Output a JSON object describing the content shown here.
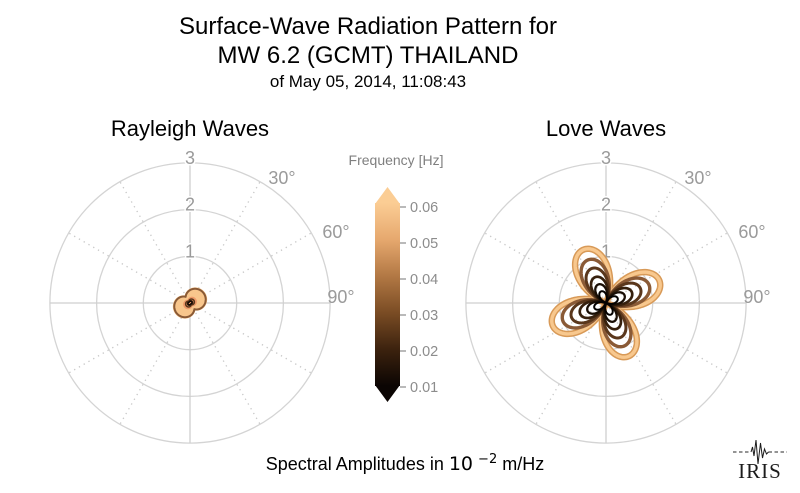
{
  "figure": {
    "title_line1": "Surface-Wave Radiation Pattern for",
    "title_line2": "MW 6.2 (GCMT) THAILAND",
    "title_line3": "of May 05, 2014, 11:08:43",
    "caption_prefix": "Spectral Amplitudes in ",
    "caption_base": "10",
    "caption_exponent": "−2",
    "caption_suffix": " m/Hz",
    "logo_text": "IRIS"
  },
  "polar_grid": {
    "circle_color": "#d4d4d4",
    "axis_color": "#cfcfcf",
    "spoke_color": "#c8c8c8",
    "label_color": "#9a9a9a"
  },
  "colorbar": {
    "title": "Frequency [Hz]",
    "tick_labels": [
      "0.06",
      "0.05",
      "0.04",
      "0.03",
      "0.02",
      "0.01"
    ],
    "gradient_top_to_bottom": [
      "#fbcd94",
      "#e6a86e",
      "#b27844",
      "#7a4c24",
      "#3c220e",
      "#0b0503"
    ],
    "extend_arrows": "both"
  },
  "chart_data": [
    {
      "type": "polar_radiation",
      "title": "Rayleigh Waves",
      "r_axis": {
        "ticks": [
          1,
          2,
          3
        ],
        "max": 3
      },
      "angle_ticks_deg": [
        30,
        60,
        90
      ],
      "angle_tick_labels": [
        "30°",
        "60°",
        "90°"
      ],
      "pattern": {
        "lobes": 2,
        "orientation_deg": 55,
        "waist_fraction": 0.45,
        "series": [
          {
            "frequency_hz": 0.06,
            "amplitude": 0.37,
            "color": "#f8c68c",
            "fill": "#f8c68c",
            "width": 2
          },
          {
            "frequency_hz": 0.05,
            "amplitude": 0.36,
            "color": "#8a5a36",
            "width": 2
          },
          {
            "frequency_hz": 0.04,
            "amplitude": 0.14,
            "color": "#ee9a69",
            "fill": "#ee9a69",
            "width": 1.5
          },
          {
            "frequency_hz": 0.03,
            "amplitude": 0.1,
            "color": "#5a371c",
            "width": 1.5
          },
          {
            "frequency_hz": 0.02,
            "amplitude": 0.06,
            "color": "#2c1809",
            "width": 1.2
          },
          {
            "frequency_hz": 0.01,
            "amplitude": 0.04,
            "color": "#0a0502",
            "width": 1
          }
        ]
      }
    },
    {
      "type": "polar_radiation",
      "title": "Love Waves",
      "r_axis": {
        "ticks": [
          1,
          2,
          3
        ],
        "max": 3
      },
      "angle_ticks_deg": [
        30,
        60,
        90
      ],
      "angle_tick_labels": [
        "30°",
        "60°",
        "90°"
      ],
      "pattern": {
        "lobes": 4,
        "orientation_deg": 67,
        "waist_fraction": 0,
        "series": [
          {
            "frequency_hz": 0.06,
            "amplitude": 1.24,
            "color": "#f8c88e",
            "edge": "#d89a58",
            "width": 3.4
          },
          {
            "frequency_hz": 0.05,
            "amplitude": 1.0,
            "color": "#8a5a36",
            "width": 3.4
          },
          {
            "frequency_hz": 0.04,
            "amplitude": 0.8,
            "color": "#5a371c",
            "width": 3.0
          },
          {
            "frequency_hz": 0.03,
            "amplitude": 0.6,
            "color": "#36200d",
            "width": 2.7
          },
          {
            "frequency_hz": 0.02,
            "amplitude": 0.43,
            "color": "#190e05",
            "width": 2.3
          },
          {
            "frequency_hz": 0.01,
            "amplitude": 0.27,
            "color": "#040201",
            "width": 2
          }
        ]
      }
    }
  ]
}
